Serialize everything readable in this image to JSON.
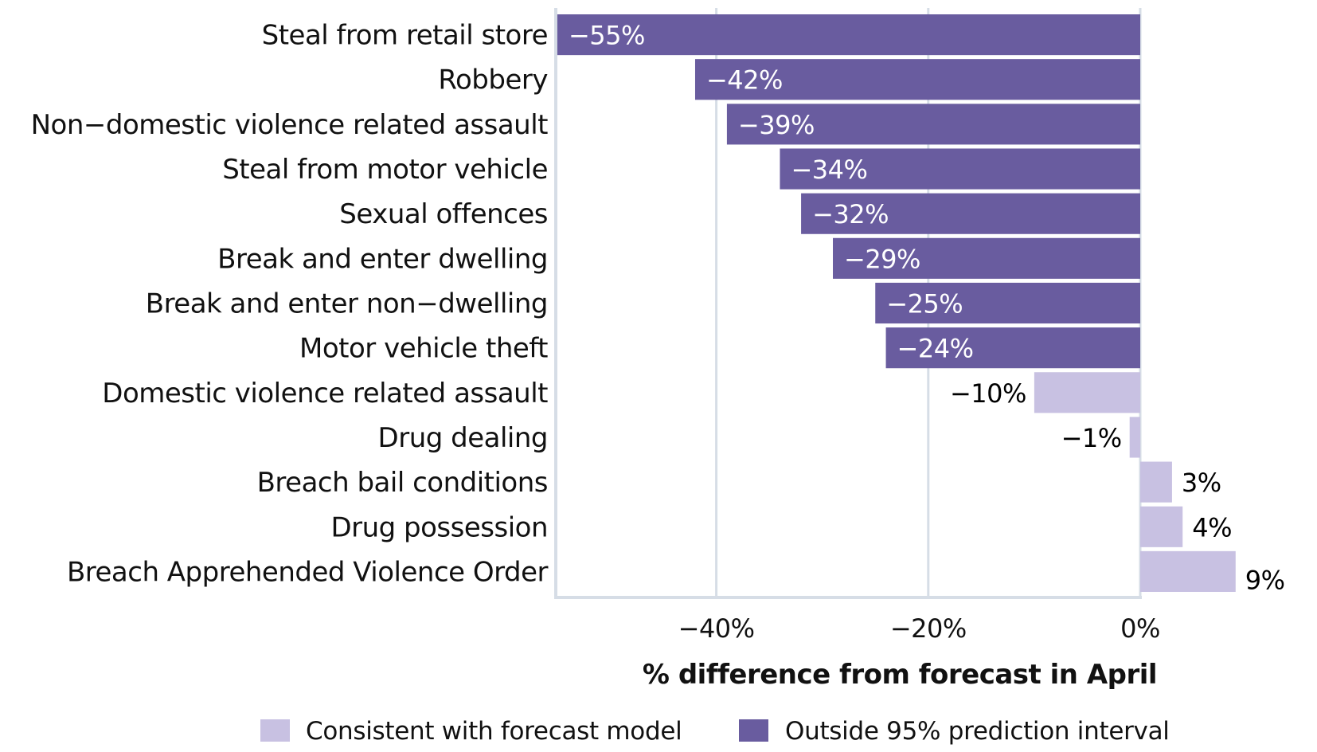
{
  "chart_data": {
    "type": "bar",
    "orientation": "horizontal",
    "title": "",
    "xlabel": "% difference from forecast in April",
    "ylabel": "",
    "xlim": [
      -55.3,
      0
    ],
    "x_ticks": [
      -40,
      -20,
      0
    ],
    "x_tick_labels": [
      "−40%",
      "−20%",
      "0%"
    ],
    "grid": "vertical",
    "categories": [
      "Steal from retail store",
      "Robbery",
      "Non−domestic violence related assault",
      "Steal from motor vehicle",
      "Sexual offences",
      "Break and enter dwelling",
      "Break and enter non−dwelling",
      "Motor vehicle theft",
      "Domestic violence related assault",
      "Drug dealing",
      "Breach bail conditions",
      "Drug possession",
      "Breach Apprehended Violence Order"
    ],
    "values": [
      -55,
      -42,
      -39,
      -34,
      -32,
      -29,
      -25,
      -24,
      -10,
      -1,
      3,
      4,
      9
    ],
    "value_labels": [
      "−55%",
      "−42%",
      "−39%",
      "−34%",
      "−32%",
      "−29%",
      "−25%",
      "−24%",
      "−10%",
      "−1%",
      "3%",
      "4%",
      "9%"
    ],
    "groups": [
      "outside",
      "outside",
      "outside",
      "outside",
      "outside",
      "outside",
      "outside",
      "outside",
      "consistent",
      "consistent",
      "consistent",
      "consistent",
      "consistent"
    ],
    "legend": {
      "placement": "bottom",
      "entries": [
        {
          "key": "consistent",
          "label": "Consistent with forecast model",
          "color": "#c8c1e2"
        },
        {
          "key": "outside",
          "label": "Outside 95% prediction interval",
          "color": "#695c9f"
        }
      ]
    },
    "colors": {
      "consistent": "#c8c1e2",
      "outside": "#695c9f",
      "grid": "#d6dde6",
      "label_inside": "#ffffff",
      "label_outside": "#000000"
    }
  }
}
